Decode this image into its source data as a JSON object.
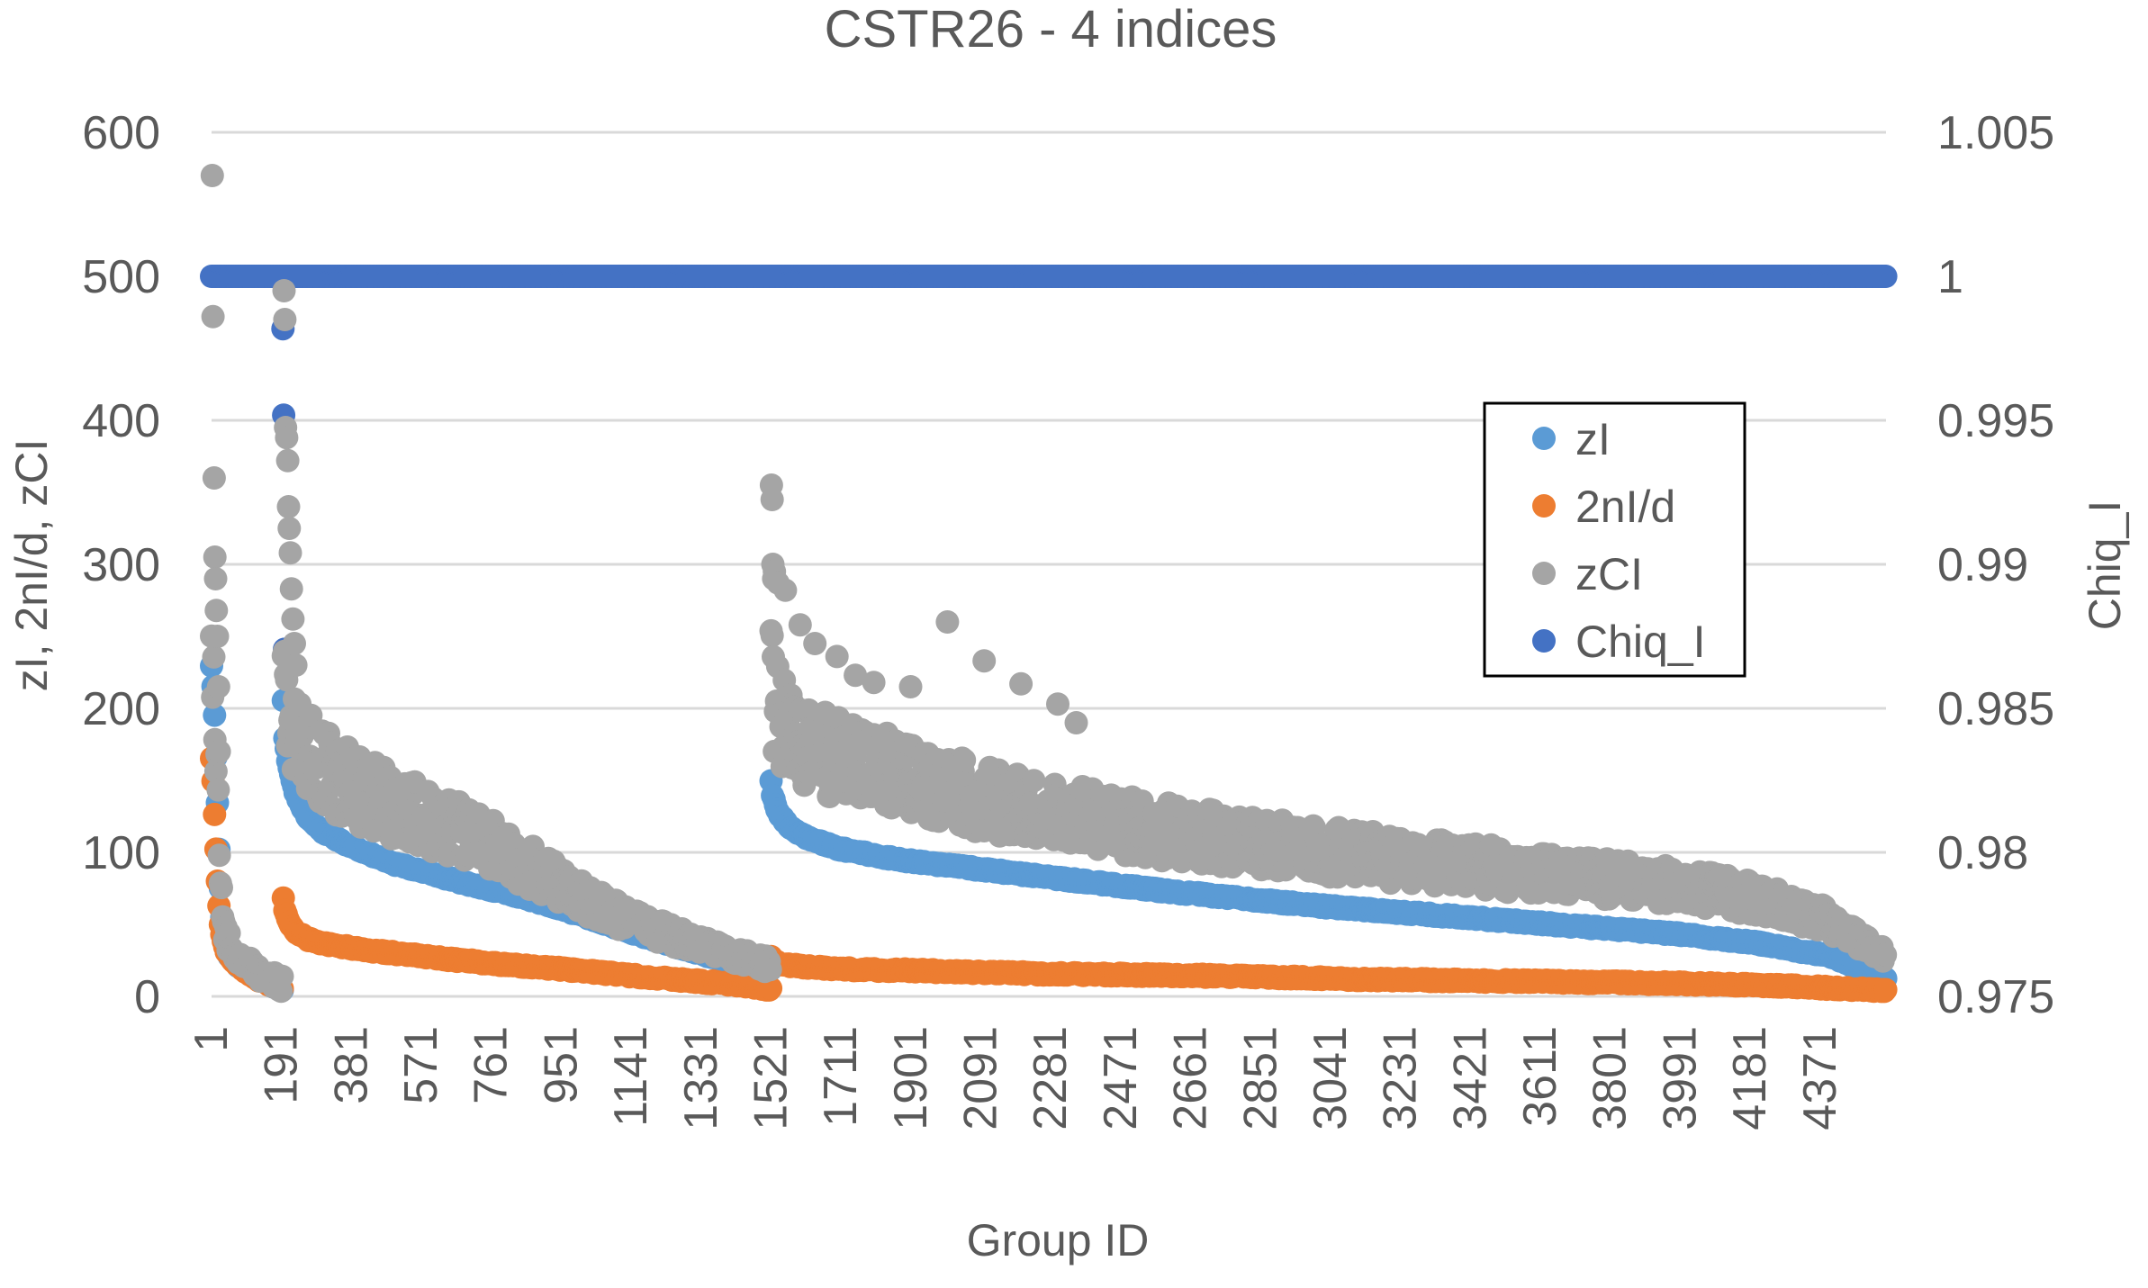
{
  "chart_data": {
    "type": "scatter",
    "title": "CSTR26 - 4 indices",
    "xlabel": "Group ID",
    "ylabel": "zI, 2nI/d, zCI",
    "y2label": "Chiq_I",
    "xlim": [
      1,
      4550
    ],
    "ylim": [
      0,
      600
    ],
    "y2lim": [
      0.975,
      1.005
    ],
    "x_ticks": [
      "1",
      "191",
      "381",
      "571",
      "761",
      "951",
      "1141",
      "1331",
      "1521",
      "1711",
      "1901",
      "2091",
      "2281",
      "2471",
      "2661",
      "2851",
      "3041",
      "3231",
      "3421",
      "3611",
      "3801",
      "3991",
      "4181",
      "4371"
    ],
    "y_ticks": [
      "0",
      "100",
      "200",
      "300",
      "400",
      "500",
      "600"
    ],
    "y2_ticks": [
      "0.975",
      "0.98",
      "0.985",
      "0.99",
      "0.995",
      "1",
      "1.005"
    ],
    "legend_position": "center-right",
    "gridlines": true,
    "series": [
      {
        "name": "zI",
        "axis": "left",
        "color": "#5B9BD5",
        "segments": [
          {
            "x": [
              1,
              5,
              10,
              15,
              20,
              25,
              30,
              40,
              50,
              70,
              100,
              130,
              160,
              195
            ],
            "y": [
              230,
              215,
              190,
              150,
              110,
              75,
              50,
              35,
              28,
              22,
              17,
              12,
              8,
              5
            ]
          },
          {
            "x": [
              196,
              200,
              210,
              230,
              260,
              300,
              350,
              400,
              500,
              600,
              700,
              800,
              900,
              1000,
              1100,
              1200,
              1300,
              1400,
              1520
            ],
            "y": [
              205,
              180,
              160,
              140,
              125,
              115,
              108,
              102,
              92,
              85,
              78,
              72,
              65,
              57,
              48,
              40,
              32,
              25,
              18
            ]
          },
          {
            "x": [
              1521,
              1525,
              1540,
              1570,
              1620,
              1700,
              1800,
              1900,
              2000,
              2200,
              2400,
              2600,
              2800,
              3000,
              3200,
              3400,
              3600,
              3800,
              4000,
              4200,
              4400,
              4550
            ],
            "y": [
              150,
              140,
              128,
              118,
              110,
              103,
              98,
              94,
              91,
              85,
              79,
              73,
              68,
              63,
              59,
              55,
              51,
              47,
              43,
              37,
              28,
              12
            ]
          }
        ]
      },
      {
        "name": "2nI/d",
        "axis": "left",
        "color": "#ED7D31",
        "segments": [
          {
            "x": [
              1,
              5,
              10,
              15,
              20,
              25,
              30,
              40,
              60,
              90,
              120,
              150,
              195
            ],
            "y": [
              165,
              150,
              120,
              90,
              65,
              50,
              40,
              32,
              25,
              18,
              13,
              9,
              5
            ]
          },
          {
            "x": [
              196,
              200,
              210,
              230,
              260,
              300,
              400,
              500,
              600,
              800,
              1000,
              1200,
              1400,
              1520
            ],
            "y": [
              68,
              60,
              52,
              45,
              40,
              37,
              33,
              30,
              27,
              22,
              18,
              13,
              9,
              5
            ]
          },
          {
            "x": [
              1521,
              1525,
              1550,
              1600,
              1700,
              1900,
              2200,
              2500,
              2800,
              3100,
              3400,
              3700,
              4000,
              4300,
              4550
            ],
            "y": [
              28,
              25,
              22,
              21,
              19,
              18,
              16,
              15,
              14,
              12,
              11,
              10,
              9,
              7,
              4
            ]
          }
        ]
      },
      {
        "name": "zCI",
        "axis": "left",
        "color": "#A5A5A5",
        "segments": [
          {
            "x": [
              1,
              5,
              10,
              15,
              20,
              25,
              30,
              40,
              60,
              90,
              120,
              160,
              195
            ],
            "y": [
              235,
              225,
              205,
              180,
              130,
              90,
              60,
              42,
              32,
              25,
              18,
              12,
              8
            ]
          },
          {
            "x": [
              196,
              200,
              210,
              230,
              260,
              300,
              350,
              400,
              500,
              600,
              700,
              800,
              900,
              1000,
              1100,
              1200,
              1300,
              1400,
              1520
            ],
            "y": [
              255,
              230,
              205,
              185,
              170,
              158,
              150,
              143,
              132,
              122,
              112,
              100,
              85,
              70,
              57,
              47,
              38,
              30,
              22
            ]
          },
          {
            "x": [
              1521,
              1525,
              1540,
              1570,
              1620,
              1700,
              1800,
              1900,
              2000,
              2200,
              2400,
              2600,
              2800,
              3000,
              3200,
              3400,
              3600,
              3800,
              4000,
              4200,
              4400,
              4550
            ],
            "y": [
              230,
              210,
              195,
              182,
              172,
              165,
              158,
              150,
              143,
              132,
              122,
              114,
              107,
              101,
              96,
              91,
              86,
              81,
              77,
              68,
              52,
              28
            ]
          }
        ],
        "outliers": {
          "x": [
            3,
            5,
            8,
            10,
            12,
            14,
            17,
            20,
            22,
            198,
            200,
            202,
            205,
            208,
            210,
            212,
            215,
            218,
            222,
            226,
            230,
            1522,
            1524,
            1526,
            1528,
            1530,
            1540,
            1560,
            1600,
            1640,
            1700,
            1750,
            1800,
            1900,
            2000,
            2100,
            2200,
            2300,
            2350
          ],
          "y": [
            570,
            472,
            360,
            305,
            290,
            268,
            250,
            215,
            170,
            490,
            470,
            395,
            388,
            372,
            340,
            325,
            308,
            283,
            262,
            245,
            230,
            355,
            345,
            300,
            290,
            295,
            287,
            282,
            258,
            245,
            236,
            223,
            218,
            215,
            260,
            233,
            217,
            203,
            190
          ]
        }
      },
      {
        "name": "Chiq_I",
        "axis": "right",
        "color": "#4472C4",
        "segments": [
          {
            "x": [
              1,
              4550
            ],
            "y": [
              1.0,
              1.0
            ]
          }
        ],
        "outliers": {
          "x": [
            195,
            197,
            199
          ],
          "y": [
            0.99818,
            0.99518,
            0.98705
          ]
        }
      }
    ]
  }
}
